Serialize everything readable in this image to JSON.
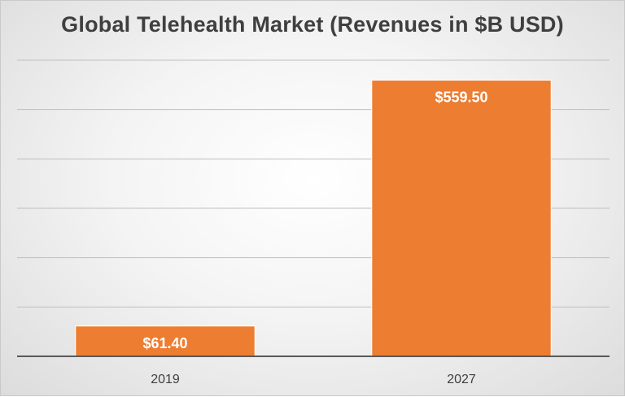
{
  "chart_data": {
    "type": "bar",
    "title": "Global Telehealth Market (Revenues in $B USD)",
    "categories": [
      "2019",
      "2027"
    ],
    "values": [
      61.4,
      559.5
    ],
    "data_labels": [
      "$61.40",
      "$559.50"
    ],
    "xlabel": "",
    "ylabel": "",
    "ylim": [
      0,
      600
    ],
    "grid": true,
    "legend": "none",
    "bar_color": "#ED7D31",
    "data_label_color": "#FFFFFF",
    "title_color": "#3F3F3F",
    "axis_label_color": "#404040",
    "gridline_color": "#BFBFBF"
  }
}
